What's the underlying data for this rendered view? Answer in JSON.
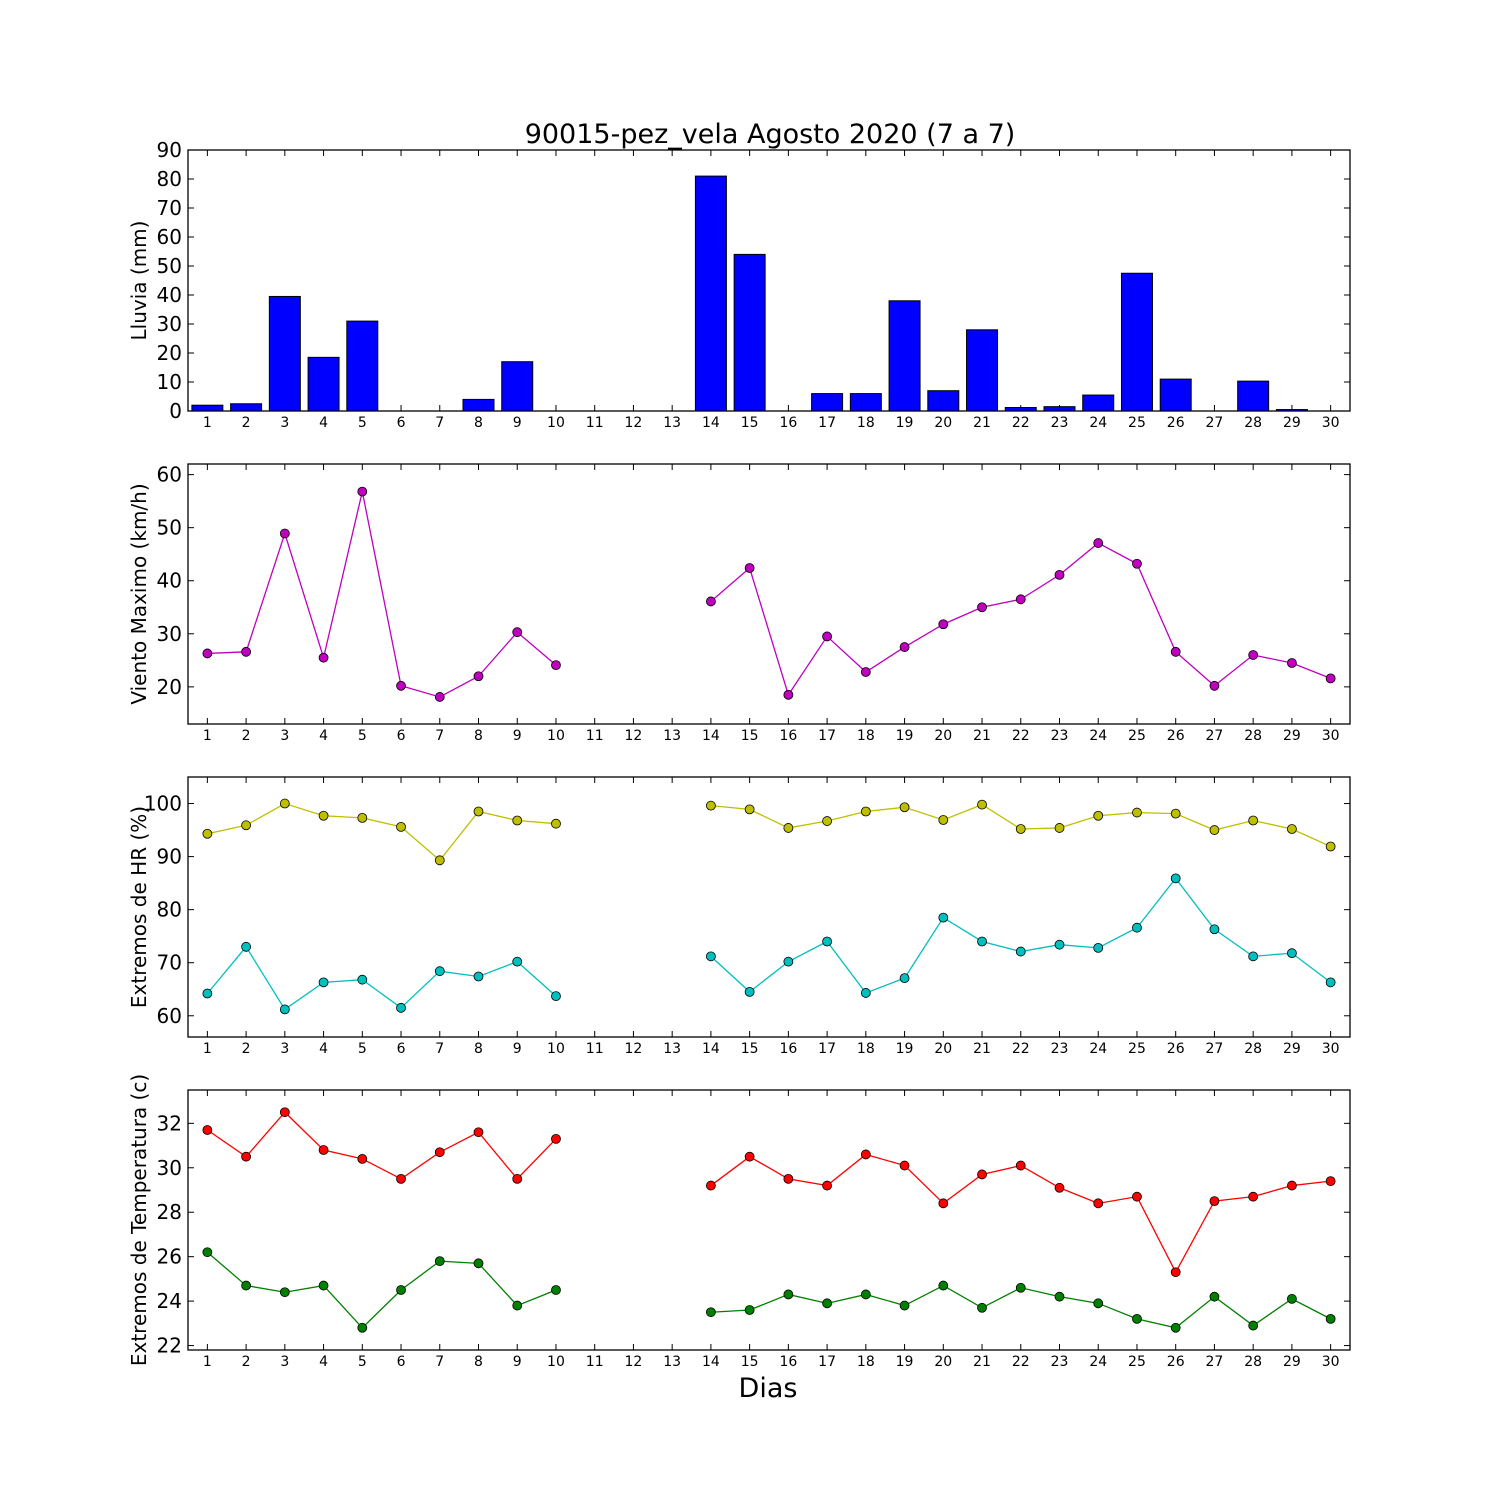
{
  "chart_data": [
    {
      "type": "bar",
      "title": "90015-pez_vela Agosto 2020  (7 a 7)",
      "ylabel": "Lluvia (mm)",
      "xlabel": "",
      "ylim": [
        0,
        90
      ],
      "yticks": [
        0,
        10,
        20,
        30,
        40,
        50,
        60,
        70,
        80,
        90
      ],
      "categories": [
        "1",
        "2",
        "3",
        "4",
        "5",
        "6",
        "7",
        "8",
        "9",
        "10",
        "11",
        "12",
        "13",
        "14",
        "15",
        "16",
        "17",
        "18",
        "19",
        "20",
        "21",
        "22",
        "23",
        "24",
        "25",
        "26",
        "27",
        "28",
        "29",
        "30"
      ],
      "series": [
        {
          "color": "#0000ff",
          "values": [
            2,
            2.5,
            39.5,
            18.5,
            31,
            0,
            0,
            4,
            17,
            null,
            null,
            null,
            null,
            81,
            54,
            0,
            6,
            6,
            38,
            7,
            28,
            1.2,
            1.5,
            5.5,
            47.5,
            11,
            0,
            10.3,
            0.5,
            null
          ]
        }
      ],
      "grid": false
    },
    {
      "type": "line",
      "title": "",
      "ylabel": "Viento Maximo (km/h)",
      "xlabel": "",
      "ylim": [
        13,
        62
      ],
      "yticks": [
        20,
        30,
        40,
        50,
        60
      ],
      "categories": [
        "1",
        "2",
        "3",
        "4",
        "5",
        "6",
        "7",
        "8",
        "9",
        "10",
        "11",
        "12",
        "13",
        "14",
        "15",
        "16",
        "17",
        "18",
        "19",
        "20",
        "21",
        "22",
        "23",
        "24",
        "25",
        "26",
        "27",
        "28",
        "29",
        "30"
      ],
      "series": [
        {
          "color": "#bf00bf",
          "values": [
            26.3,
            26.6,
            48.9,
            25.5,
            56.8,
            20.2,
            18.1,
            22.0,
            30.3,
            24.1,
            null,
            null,
            null,
            36.1,
            42.4,
            18.5,
            29.5,
            22.8,
            27.5,
            31.8,
            35.0,
            36.5,
            41.1,
            47.1,
            43.2,
            26.6,
            20.2,
            26.0,
            24.5,
            21.6
          ]
        }
      ],
      "grid": false
    },
    {
      "type": "line",
      "title": "",
      "ylabel": "Extremos de HR (%)",
      "xlabel": "",
      "ylim": [
        56,
        105
      ],
      "yticks": [
        60,
        70,
        80,
        90,
        100
      ],
      "categories": [
        "1",
        "2",
        "3",
        "4",
        "5",
        "6",
        "7",
        "8",
        "9",
        "10",
        "11",
        "12",
        "13",
        "14",
        "15",
        "16",
        "17",
        "18",
        "19",
        "20",
        "21",
        "22",
        "23",
        "24",
        "25",
        "26",
        "27",
        "28",
        "29",
        "30"
      ],
      "series": [
        {
          "color": "#bfbf00",
          "values": [
            94.3,
            95.9,
            100.0,
            97.7,
            97.3,
            95.6,
            89.3,
            98.5,
            96.8,
            96.2,
            null,
            null,
            null,
            99.6,
            98.9,
            95.4,
            96.7,
            98.5,
            99.3,
            96.9,
            99.8,
            95.2,
            95.4,
            97.7,
            98.3,
            98.1,
            95.0,
            96.8,
            95.2,
            91.9
          ]
        },
        {
          "color": "#00bfbf",
          "values": [
            64.2,
            73.0,
            61.2,
            66.3,
            66.8,
            61.5,
            68.4,
            67.4,
            70.2,
            63.7,
            null,
            null,
            null,
            71.2,
            64.5,
            70.2,
            74.0,
            64.3,
            67.1,
            78.5,
            74.0,
            72.1,
            73.4,
            72.8,
            76.6,
            85.9,
            76.3,
            71.2,
            71.8,
            66.3
          ]
        }
      ],
      "grid": false
    },
    {
      "type": "line",
      "title": "",
      "ylabel": "Extremos de Temperatura (c)",
      "xlabel": "Dias",
      "ylim": [
        21.8,
        33.5
      ],
      "yticks": [
        22,
        24,
        26,
        28,
        30,
        32
      ],
      "categories": [
        "1",
        "2",
        "3",
        "4",
        "5",
        "6",
        "7",
        "8",
        "9",
        "10",
        "11",
        "12",
        "13",
        "14",
        "15",
        "16",
        "17",
        "18",
        "19",
        "20",
        "21",
        "22",
        "23",
        "24",
        "25",
        "26",
        "27",
        "28",
        "29",
        "30"
      ],
      "series": [
        {
          "color": "#ff0000",
          "values": [
            31.7,
            30.5,
            32.5,
            30.8,
            30.4,
            29.5,
            30.7,
            31.6,
            29.5,
            31.3,
            null,
            null,
            null,
            29.2,
            30.5,
            29.5,
            29.2,
            30.6,
            30.1,
            28.4,
            29.7,
            30.1,
            29.1,
            28.4,
            28.7,
            25.3,
            28.5,
            28.7,
            29.2,
            29.4
          ]
        },
        {
          "color": "#008000",
          "values": [
            26.2,
            24.7,
            24.4,
            24.7,
            22.8,
            24.5,
            25.8,
            25.7,
            23.8,
            24.5,
            null,
            null,
            null,
            23.5,
            23.6,
            24.3,
            23.9,
            24.3,
            23.8,
            24.7,
            23.7,
            24.6,
            24.2,
            23.9,
            23.2,
            22.8,
            24.2,
            22.9,
            24.1,
            23.2
          ]
        }
      ],
      "grid": false
    }
  ]
}
